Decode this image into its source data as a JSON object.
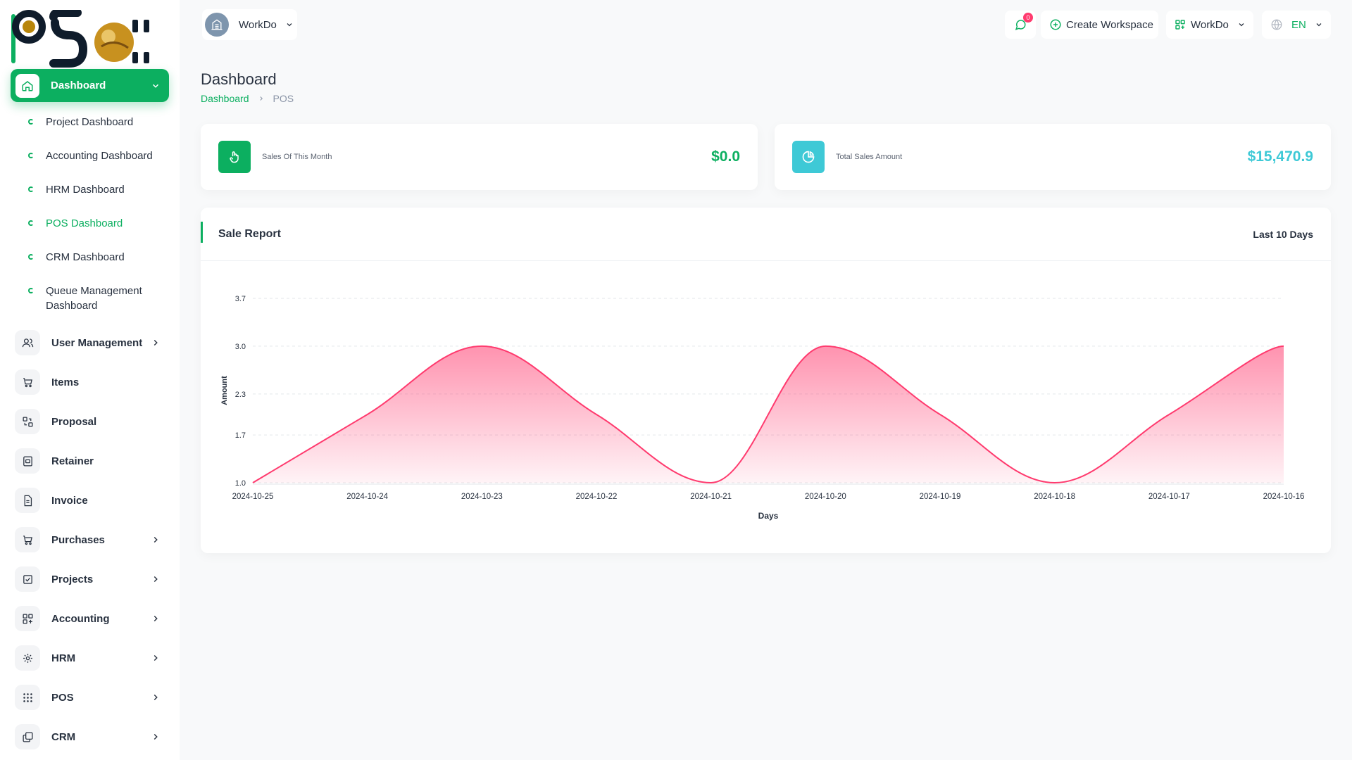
{
  "brand": {
    "logo_text": "PSoft"
  },
  "sidebar": {
    "active": {
      "label": "Dashboard",
      "icon": "home-icon"
    },
    "sub_items": [
      {
        "label": "Project Dashboard"
      },
      {
        "label": "Accounting Dashboard"
      },
      {
        "label": "HRM Dashboard"
      },
      {
        "label": "POS Dashboard"
      },
      {
        "label": "CRM Dashboard"
      },
      {
        "label": "Queue Management Dashboard"
      }
    ],
    "items": [
      {
        "label": "User Management",
        "icon": "users-icon"
      },
      {
        "label": "Items",
        "icon": "cart-icon"
      },
      {
        "label": "Proposal",
        "icon": "proposal-icon"
      },
      {
        "label": "Retainer",
        "icon": "retainer-icon"
      },
      {
        "label": "Invoice",
        "icon": "invoice-icon"
      },
      {
        "label": "Purchases",
        "icon": "cart-icon"
      },
      {
        "label": "Projects",
        "icon": "checkbox-icon"
      },
      {
        "label": "Accounting",
        "icon": "apps-icon"
      },
      {
        "label": "HRM",
        "icon": "hrm-icon"
      },
      {
        "label": "POS",
        "icon": "grid-dots-icon"
      },
      {
        "label": "CRM",
        "icon": "layers-icon"
      }
    ]
  },
  "header": {
    "workspace": "WorkDo",
    "notifications_count": "0",
    "create_workspace": "Create Workspace",
    "workspace_menu": "WorkDo",
    "language": "EN"
  },
  "page": {
    "title": "Dashboard",
    "breadcrumb": [
      "Dashboard",
      "POS"
    ]
  },
  "stats": [
    {
      "label": "Sales Of This Month",
      "value": "$0.0",
      "color": "#0caf60"
    },
    {
      "label": "Total Sales Amount",
      "value": "$15,470.9",
      "color": "#3ec9d6"
    }
  ],
  "report": {
    "title": "Sale Report",
    "range": "Last 10 Days"
  },
  "chart_data": {
    "type": "area",
    "x": [
      "2024-10-25",
      "2024-10-24",
      "2024-10-23",
      "2024-10-22",
      "2024-10-21",
      "2024-10-20",
      "2024-10-19",
      "2024-10-18",
      "2024-10-17",
      "2024-10-16"
    ],
    "series": [
      {
        "values": [
          1,
          2,
          3,
          2,
          1,
          3,
          2,
          1,
          2,
          3
        ]
      }
    ],
    "y_ticks": [
      "1.0",
      "1.7",
      "2.3",
      "3.0",
      "3.7"
    ],
    "ylim": [
      1,
      3.7
    ],
    "xlabel": "Days",
    "ylabel": "Amount",
    "color": "#ff3a6e",
    "grid": true
  }
}
